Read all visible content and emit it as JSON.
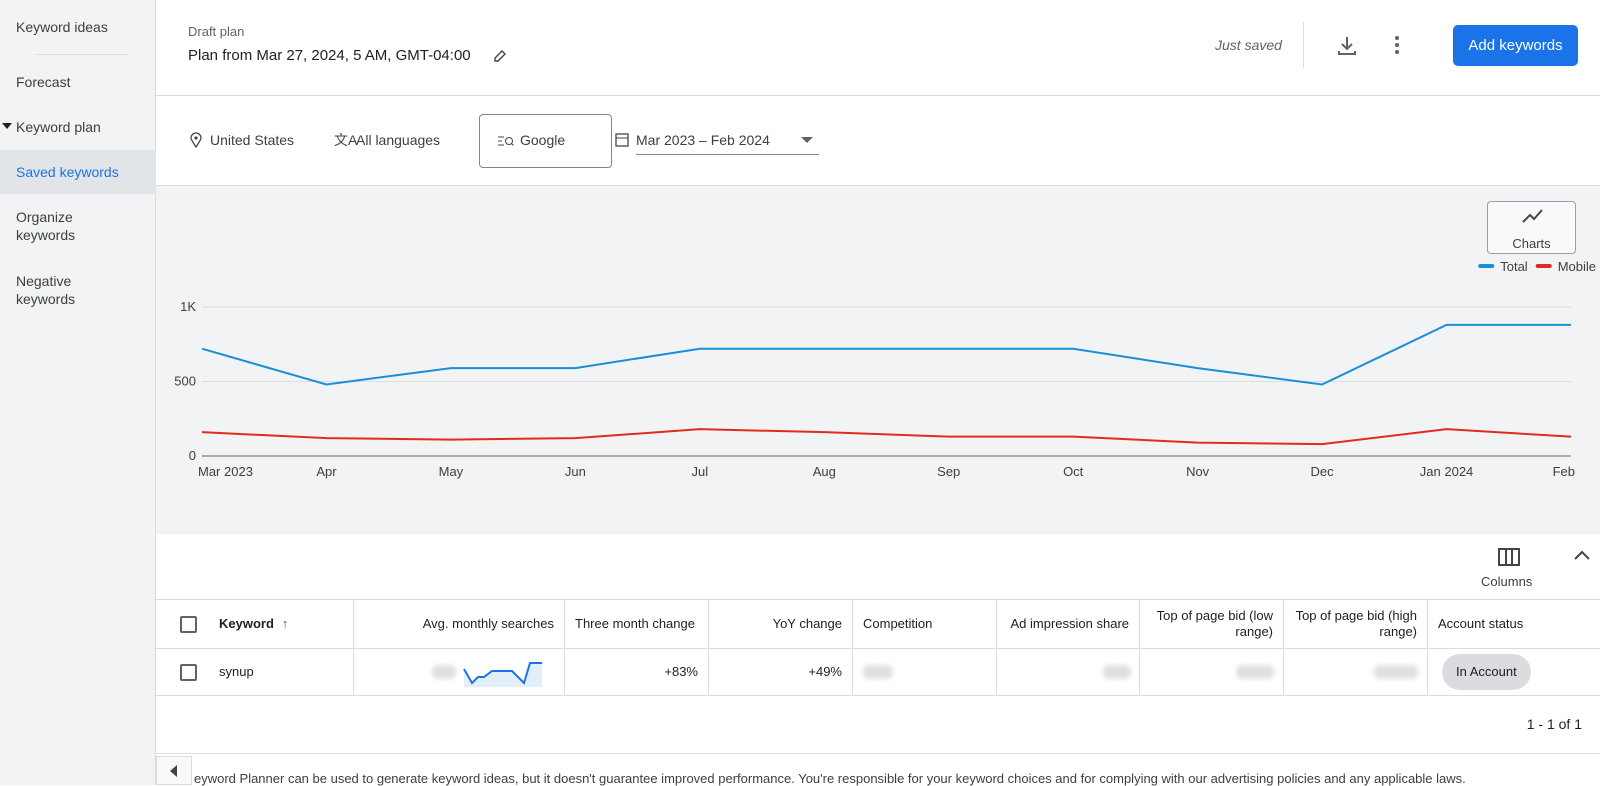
{
  "sidebar": {
    "items": [
      "Keyword ideas",
      "Forecast",
      "Keyword plan",
      "Saved keywords",
      "Organize keywords",
      "Negative keywords"
    ]
  },
  "header": {
    "label": "Draft plan",
    "title": "Plan from Mar 27, 2024, 5 AM, GMT-04:00",
    "status": "Just saved",
    "button": "Add keywords"
  },
  "filters": {
    "location": "United States",
    "language": "All languages",
    "network": "Google",
    "date_range": "Mar 2023 – Feb 2024"
  },
  "chart": {
    "type": "line",
    "button": "Charts",
    "categories": [
      "Mar 2023",
      "Apr",
      "May",
      "Jun",
      "Jul",
      "Aug",
      "Sep",
      "Oct",
      "Nov",
      "Dec",
      "Jan 2024",
      "Feb"
    ],
    "series": [
      {
        "name": "Total",
        "color": "#1a8fd6",
        "values": [
          720,
          480,
          590,
          590,
          720,
          720,
          720,
          720,
          590,
          480,
          880,
          880
        ]
      },
      {
        "name": "Mobile",
        "color": "#e02b20",
        "values": [
          160,
          120,
          110,
          120,
          180,
          160,
          130,
          130,
          90,
          80,
          180,
          130
        ]
      }
    ],
    "ylim": [
      0,
      1000
    ],
    "yticks": [
      0,
      500,
      {
        "value": 1000,
        "label": "1K"
      }
    ],
    "grid": true,
    "legend": "top-right"
  },
  "table": {
    "columns_button": "Columns",
    "headers": [
      "Keyword",
      "Avg. monthly searches",
      "Three month change",
      "YoY change",
      "Competition",
      "Ad impression share",
      "Top of page bid (low range)",
      "Top of page bid (high range)",
      "Account status"
    ],
    "rows": [
      {
        "keyword": "synup",
        "three_month_change": "+83%",
        "yoy_change": "+49%",
        "account_status": "In Account"
      }
    ],
    "pagination": "1 - 1 of 1"
  },
  "footer": {
    "notice": "eyword Planner can be used to generate keyword ideas, but it doesn't guarantee improved performance. You're responsible for your keyword choices and for complying with our advertising policies and any applicable laws."
  }
}
